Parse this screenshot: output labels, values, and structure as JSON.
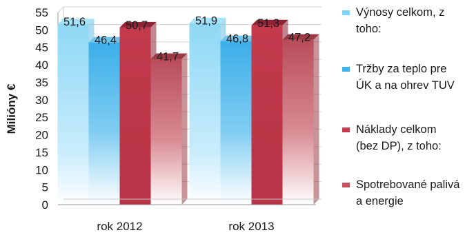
{
  "chart_data": {
    "type": "bar",
    "title": "",
    "xlabel": "",
    "ylabel": "Milióny  €",
    "ylim": [
      0,
      55
    ],
    "yticks": [
      0,
      5,
      10,
      15,
      20,
      25,
      30,
      35,
      40,
      45,
      50,
      55
    ],
    "grid": true,
    "legend_position": "right",
    "categories": [
      "rok 2012",
      "rok 2013"
    ],
    "series": [
      {
        "name": "Výnosy celkom, z toho:",
        "values": [
          51.6,
          51.9
        ],
        "labels": [
          "51,6",
          "51,9"
        ],
        "color": "#7fd3f4"
      },
      {
        "name": "Tržby za teplo pre ÚK a na ohrev TUV",
        "values": [
          46.4,
          46.8
        ],
        "labels": [
          "46,4",
          "46,8"
        ],
        "color": "#3fb1ea"
      },
      {
        "name": "Náklady celkom (bez DP), z toho:",
        "values": [
          50.7,
          51.3
        ],
        "labels": [
          "50,7",
          "51,3"
        ],
        "color": "#c23a4c"
      },
      {
        "name": "Spotrebované palivá a energie",
        "values": [
          41.7,
          47.2
        ],
        "labels": [
          "41,7",
          "47,2"
        ],
        "color": "#c2525f"
      }
    ]
  }
}
